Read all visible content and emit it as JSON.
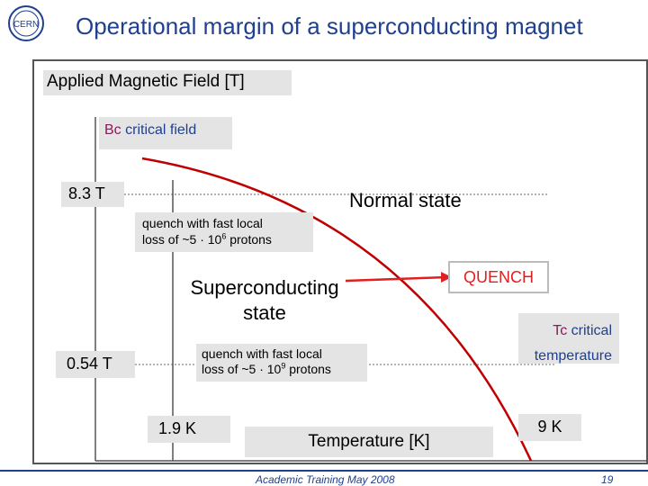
{
  "header": {
    "title": "Operational margin of a superconducting magnet",
    "logo_text": "CERN"
  },
  "diagram": {
    "y_axis_label": "Applied Magnetic Field [T]",
    "x_axis_label": "Temperature [K]",
    "bc_label": {
      "prefix": "Bc",
      "suffix": " critical field"
    },
    "tc_label": {
      "line1_prefix": "Tc",
      "line1_suffix": " critical",
      "line2": "temperature"
    },
    "field_high": "8.3 T",
    "field_low": "0.54 T",
    "temp_operating": "1.9 K",
    "temp_critical": "9 K",
    "normal_state": "Normal state",
    "superconducting_state": {
      "line1": "Superconducting",
      "line2": "state"
    },
    "quench_label": "QUENCH",
    "quench_fast": {
      "line1": "quench with fast local",
      "line2_prefix": "loss of ~5 · 10",
      "exponent": "6",
      "line2_suffix": " protons"
    },
    "quench_slow": {
      "line1": "quench with fast local",
      "line2_prefix": "loss of ~5 · 10",
      "exponent": "9",
      "line2_suffix": " protons"
    },
    "colors": {
      "accent": "#8b1a5a",
      "quench_arrow": "#e02020",
      "title": "#1f3f8f",
      "curve": "#c00000"
    }
  },
  "footer": {
    "left_text": "Academic Training May 2008",
    "page_number": "19"
  }
}
